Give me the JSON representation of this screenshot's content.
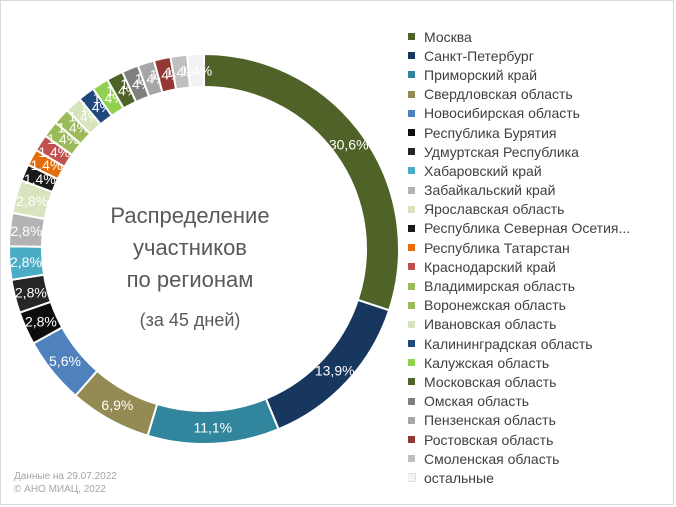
{
  "chart_data": {
    "type": "pie",
    "title": "Распределение участников по регионам",
    "subtitle": "(за 45 дней)",
    "legend_position": "right",
    "series": [
      {
        "name": "Москва",
        "value": 30.6,
        "label": "30,6%",
        "color": "#4f6228"
      },
      {
        "name": "Санкт-Петербург",
        "value": 13.9,
        "label": "13,9%",
        "color": "#17375e"
      },
      {
        "name": "Приморский край",
        "value": 11.1,
        "label": "11,1%",
        "color": "#31859c"
      },
      {
        "name": "Свердловская область",
        "value": 6.9,
        "label": "6,9%",
        "color": "#948a54"
      },
      {
        "name": "Новосибирская область",
        "value": 5.6,
        "label": "5,6%",
        "color": "#4f81bd"
      },
      {
        "name": "Республика Бурятия",
        "value": 2.8,
        "label": "2,8%",
        "color": "#0d0d0d"
      },
      {
        "name": "Удмуртская Республика",
        "value": 2.8,
        "label": "2,8%",
        "color": "#262626"
      },
      {
        "name": "Хабаровский край",
        "value": 2.8,
        "label": "2,8%",
        "color": "#4bacc6"
      },
      {
        "name": "Забайкальский край",
        "value": 2.8,
        "label": "2,8%",
        "color": "#b3b3b3"
      },
      {
        "name": "Ярославская область",
        "value": 2.8,
        "label": "2,8%",
        "color": "#d7e4bd"
      },
      {
        "name": "Республика Северная Осетия...",
        "value": 1.4,
        "label": "1,4%",
        "color": "#1a1a1a"
      },
      {
        "name": "Республика Татарстан",
        "value": 1.4,
        "label": "1,4%",
        "color": "#e46c0a"
      },
      {
        "name": "Краснодарский край",
        "value": 1.4,
        "label": "1,4%",
        "color": "#c0504d"
      },
      {
        "name": "Владимирская область",
        "value": 1.4,
        "label": "1,4%",
        "color": "#9bbb59"
      },
      {
        "name": "Воронежская область",
        "value": 1.4,
        "label": "1,4%",
        "color": "#9bbb59"
      },
      {
        "name": "Ивановская область",
        "value": 1.4,
        "label": "1,4%",
        "color": "#d7e4bd"
      },
      {
        "name": "Калининградская область",
        "value": 1.4,
        "label": "1,4%",
        "color": "#1f497d"
      },
      {
        "name": "Калужская область",
        "value": 1.4,
        "label": "1,4%",
        "color": "#92d050"
      },
      {
        "name": "Московская область",
        "value": 1.4,
        "label": "1,4%",
        "color": "#4f6228"
      },
      {
        "name": "Омская область",
        "value": 1.4,
        "label": "1,4%",
        "color": "#7f7f7f"
      },
      {
        "name": "Пензенская область",
        "value": 1.4,
        "label": "1,4%",
        "color": "#a6a6a6"
      },
      {
        "name": "Ростовская область",
        "value": 1.4,
        "label": "1,4%",
        "color": "#953735"
      },
      {
        "name": "Смоленская область",
        "value": 1.4,
        "label": "1,4%",
        "color": "#bfbfbf"
      },
      {
        "name": "остальные",
        "value": 1.4,
        "label": "1,4%",
        "color": "#f2f2f2"
      }
    ]
  },
  "center": {
    "title": "Распределение\nучастников\nпо регионам",
    "subtitle": "(за 45 дней)"
  },
  "footnote": "Данные на 29.07.2022\n© АНО МИАЦ, 2022"
}
